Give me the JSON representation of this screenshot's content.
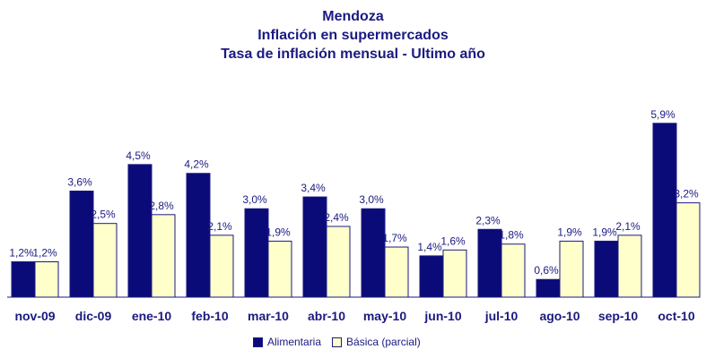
{
  "chart_data": {
    "type": "bar",
    "title": "Mendoza",
    "subtitle": "Inflación en supermercados",
    "subtitle2": "Tasa de inflación mensual - Ultimo año",
    "categories": [
      "nov-09",
      "dic-09",
      "ene-10",
      "feb-10",
      "mar-10",
      "abr-10",
      "may-10",
      "jun-10",
      "jul-10",
      "ago-10",
      "sep-10",
      "oct-10"
    ],
    "series": [
      {
        "name": "Alimentaria",
        "color": "#0a0a78",
        "values": [
          1.2,
          3.6,
          4.5,
          4.2,
          3.0,
          3.4,
          3.0,
          1.4,
          2.3,
          0.6,
          1.9,
          5.9
        ],
        "labels": [
          "1,2%",
          "3,6%",
          "4,5%",
          "4,2%",
          "3,0%",
          "3,4%",
          "3,0%",
          "1,4%",
          "2,3%",
          "0,6%",
          "1,9%",
          "5,9%"
        ]
      },
      {
        "name": "Básica (parcial)",
        "color": "#ffffcc",
        "values": [
          1.2,
          2.5,
          2.8,
          2.1,
          1.9,
          2.4,
          1.7,
          1.6,
          1.8,
          1.9,
          2.1,
          3.2
        ],
        "labels": [
          "1,2%",
          "2,5%",
          "2,8%",
          "2,1%",
          "1,9%",
          "2,4%",
          "1,7%",
          "1,6%",
          "1,8%",
          "1,9%",
          "2,1%",
          "3,2%"
        ]
      }
    ],
    "ylim": [
      0,
      6.5
    ],
    "grid": false,
    "legend_position": "bottom"
  }
}
